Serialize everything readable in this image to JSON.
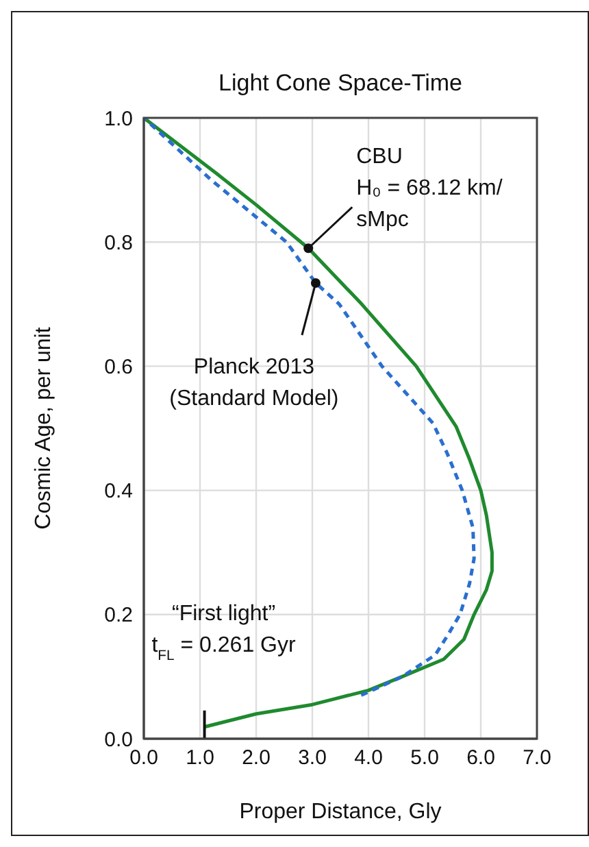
{
  "chart_data": {
    "type": "line",
    "title": "Light Cone Space-Time",
    "xlabel": "Proper Distance, Gly",
    "ylabel": "Cosmic Age, per unit",
    "xlim": [
      0,
      7
    ],
    "ylim": [
      0,
      1
    ],
    "xticks": [
      {
        "value": 0,
        "label": "0.0"
      },
      {
        "value": 1,
        "label": "1.0"
      },
      {
        "value": 2,
        "label": "2.0"
      },
      {
        "value": 3,
        "label": "3.0"
      },
      {
        "value": 4,
        "label": "4.0"
      },
      {
        "value": 5,
        "label": "5.0"
      },
      {
        "value": 6,
        "label": "6.0"
      },
      {
        "value": 7,
        "label": "7.0"
      }
    ],
    "yticks": [
      {
        "value": 0,
        "label": "0.0"
      },
      {
        "value": 0.2,
        "label": "0.2"
      },
      {
        "value": 0.4,
        "label": "0.4"
      },
      {
        "value": 0.6,
        "label": "0.6"
      },
      {
        "value": 0.8,
        "label": "0.8"
      },
      {
        "value": 1,
        "label": "1.0"
      }
    ],
    "grid": true,
    "series": [
      {
        "color": "#1f8a2e",
        "line_style": "solid",
        "x": [
          1.08,
          2.0,
          3.0,
          4.0,
          4.6,
          5.34,
          5.7,
          5.88,
          6.1,
          6.2,
          6.2,
          6.1,
          6.0,
          5.8,
          5.56,
          4.85,
          3.88,
          2.93,
          2.0,
          1.3,
          0
        ],
        "values": [
          0.019,
          0.04,
          0.055,
          0.078,
          0.1,
          0.128,
          0.16,
          0.2,
          0.24,
          0.27,
          0.3,
          0.36,
          0.4,
          0.45,
          0.503,
          0.6,
          0.7,
          0.79,
          0.86,
          0.91,
          1.0
        ]
      },
      {
        "color": "#2a6fcf",
        "line_style": "dashed",
        "x": [
          3.87,
          4.6,
          5.19,
          5.4,
          5.63,
          5.8,
          5.88,
          5.86,
          5.67,
          5.4,
          5.15,
          4.24,
          3.48,
          3.06,
          2.54,
          1.2,
          0
        ],
        "values": [
          0.07,
          0.1,
          0.135,
          0.165,
          0.2,
          0.25,
          0.29,
          0.34,
          0.4,
          0.46,
          0.508,
          0.6,
          0.7,
          0.734,
          0.8,
          0.9,
          1.0
        ]
      }
    ],
    "annotations": [
      {
        "text": "CBU\nH₀ = 68.12 km/\nsMpc",
        "x": 2.93,
        "y": 0.79
      },
      {
        "text": "Planck 2013\n(Standard Model)",
        "x": 3.06,
        "y": 0.734
      },
      {
        "text": "“First light”\nt$_{FL}$ = 0.261 Gyr",
        "x": 1.08,
        "y": 0.019
      }
    ]
  }
}
